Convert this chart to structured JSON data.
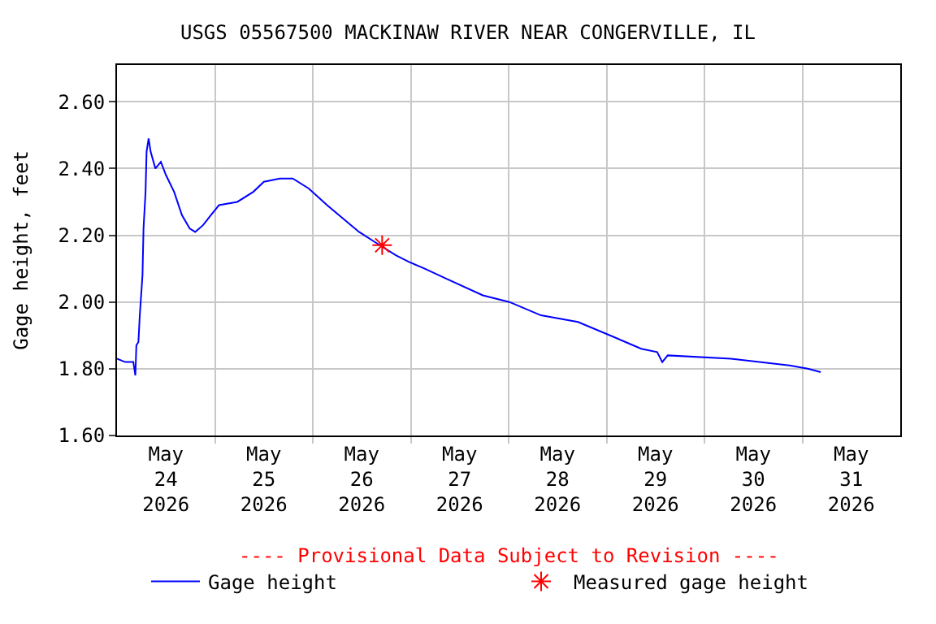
{
  "chart_data": {
    "type": "line",
    "title": "USGS 05567500 MACKINAW RIVER NEAR CONGERVILLE, IL",
    "ylabel": "Gage height, feet",
    "annotations": [
      "---- Provisional Data Subject to Revision ----"
    ],
    "xlim": [
      "2026-05-24",
      "2026-06-01"
    ],
    "xticks": [
      {
        "value": "2026-05-24T12:00",
        "label": "May\n24\n2026"
      },
      {
        "value": "2026-05-25T12:00",
        "label": "May\n25\n2026"
      },
      {
        "value": "2026-05-26T12:00",
        "label": "May\n26\n2026"
      },
      {
        "value": "2026-05-27T12:00",
        "label": "May\n27\n2026"
      },
      {
        "value": "2026-05-28T12:00",
        "label": "May\n28\n2026"
      },
      {
        "value": "2026-05-29T12:00",
        "label": "May\n29\n2026"
      },
      {
        "value": "2026-05-30T12:00",
        "label": "May\n30\n2026"
      },
      {
        "value": "2026-05-31T12:00",
        "label": "May\n31\n2026"
      },
      {
        "value": "2026-05-25",
        "label": null
      },
      {
        "value": "2026-05-26",
        "label": null
      },
      {
        "value": "2026-05-27",
        "label": null
      },
      {
        "value": "2026-05-28",
        "label": null
      },
      {
        "value": "2026-05-29",
        "label": null
      },
      {
        "value": "2026-05-30",
        "label": null
      },
      {
        "value": "2026-05-31",
        "label": null
      }
    ],
    "ylim": [
      1.6,
      2.71
    ],
    "yticks": [
      {
        "value": 1.6,
        "label": "1.60"
      },
      {
        "value": 1.8,
        "label": "1.80"
      },
      {
        "value": 2.0,
        "label": "2.00"
      },
      {
        "value": 2.2,
        "label": "2.20"
      },
      {
        "value": 2.4,
        "label": "2.40"
      },
      {
        "value": 2.6,
        "label": "2.60"
      }
    ],
    "grid": true,
    "legend": "bottom",
    "series": [
      {
        "name": "Gage height",
        "color": "#0000ff",
        "marker": "none",
        "line_style": "solid",
        "x": [
          "2026-05-24T00:00",
          "2026-05-24T02:00",
          "2026-05-24T04:00",
          "2026-05-24T04:30",
          "2026-05-24T04:45",
          "2026-05-24T05:15",
          "2026-05-24T05:35",
          "2026-05-24T06:15",
          "2026-05-24T06:30",
          "2026-05-24T07:00",
          "2026-05-24T07:15",
          "2026-05-24T07:45",
          "2026-05-24T08:15",
          "2026-05-24T09:25",
          "2026-05-24T10:45",
          "2026-05-24T12:00",
          "2026-05-24T14:00",
          "2026-05-24T15:55",
          "2026-05-24T17:50",
          "2026-05-24T19:10",
          "2026-05-24T21:05",
          "2026-05-24T23:00",
          "2026-05-25T01:00",
          "2026-05-25T05:30",
          "2026-05-25T09:25",
          "2026-05-25T12:00",
          "2026-05-25T15:55",
          "2026-05-25T19:05",
          "2026-05-25T23:00",
          "2026-05-26T03:30",
          "2026-05-26T07:25",
          "2026-05-26T11:20",
          "2026-05-26T15:10",
          "2026-05-26T20:20",
          "2026-05-26T23:35",
          "2026-05-27T03:25",
          "2026-05-27T08:40",
          "2026-05-27T17:40",
          "2026-05-28T00:10",
          "2026-05-28T07:55",
          "2026-05-28T17:00",
          "2026-05-29T00:50",
          "2026-05-29T04:40",
          "2026-05-29T08:30",
          "2026-05-29T12:25",
          "2026-05-29T13:40",
          "2026-05-29T15:00",
          "2026-05-30T06:30",
          "2026-05-30T20:50",
          "2026-05-31T01:20",
          "2026-05-31T04:30"
        ],
        "values": [
          1.83,
          1.82,
          1.82,
          1.78,
          1.87,
          1.88,
          1.96,
          2.08,
          2.22,
          2.33,
          2.45,
          2.49,
          2.45,
          2.4,
          2.42,
          2.38,
          2.33,
          2.26,
          2.22,
          2.21,
          2.23,
          2.26,
          2.29,
          2.3,
          2.33,
          2.36,
          2.37,
          2.37,
          2.34,
          2.29,
          2.25,
          2.21,
          2.18,
          2.14,
          2.12,
          2.1,
          2.07,
          2.02,
          2.0,
          1.96,
          1.94,
          1.9,
          1.88,
          1.86,
          1.85,
          1.82,
          1.84,
          1.83,
          1.81,
          1.8,
          1.79
        ]
      },
      {
        "name": "Measured gage height",
        "type": "scatter",
        "color": "#ff0000",
        "marker": "cross",
        "x": [
          "2026-05-26T17:00"
        ],
        "values": [
          2.17
        ]
      }
    ]
  }
}
